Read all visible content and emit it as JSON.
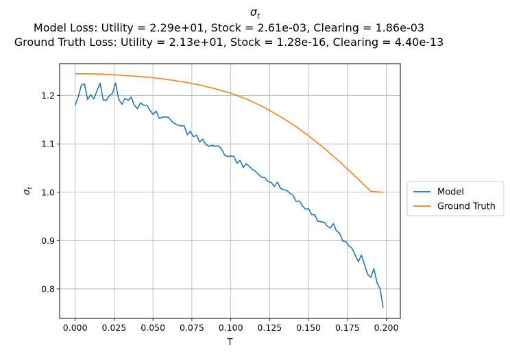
{
  "chart_data": {
    "type": "line",
    "title": "σt",
    "title_lines": [
      "Model Loss: Utility = 2.29e+01, Stock = 2.61e-03, Clearing = 1.86e-03",
      "Ground Truth Loss: Utility = 2.13e+01, Stock = 1.28e-16, Clearing = 4.40e-13"
    ],
    "xlabel": "T",
    "ylabel": "σt",
    "xlim": [
      -0.01,
      0.209
    ],
    "ylim": [
      0.739,
      1.266
    ],
    "xticks": [
      "0.000",
      "0.025",
      "0.050",
      "0.075",
      "0.100",
      "0.125",
      "0.150",
      "0.175",
      "0.200"
    ],
    "yticks": [
      "0.8",
      "0.9",
      "1.0",
      "1.1",
      "1.2"
    ],
    "grid": true,
    "legend_position": "center-right outside",
    "series": [
      {
        "name": "Model",
        "color": "#1f77b4",
        "x": [
          0.0,
          0.002,
          0.004,
          0.006,
          0.008,
          0.01,
          0.012,
          0.014,
          0.016,
          0.018,
          0.02,
          0.022,
          0.024,
          0.026,
          0.028,
          0.03,
          0.032,
          0.034,
          0.036,
          0.038,
          0.04,
          0.042,
          0.044,
          0.046,
          0.048,
          0.05,
          0.052,
          0.054,
          0.056,
          0.058,
          0.06,
          0.062,
          0.064,
          0.066,
          0.068,
          0.07,
          0.072,
          0.074,
          0.076,
          0.078,
          0.08,
          0.082,
          0.084,
          0.086,
          0.088,
          0.09,
          0.092,
          0.094,
          0.096,
          0.098,
          0.1,
          0.102,
          0.104,
          0.106,
          0.108,
          0.11,
          0.112,
          0.114,
          0.116,
          0.118,
          0.12,
          0.122,
          0.124,
          0.126,
          0.128,
          0.13,
          0.132,
          0.134,
          0.136,
          0.138,
          0.14,
          0.142,
          0.144,
          0.146,
          0.148,
          0.15,
          0.152,
          0.154,
          0.156,
          0.158,
          0.16,
          0.162,
          0.164,
          0.166,
          0.168,
          0.17,
          0.172,
          0.174,
          0.176,
          0.178,
          0.18,
          0.182,
          0.184,
          0.186,
          0.188,
          0.19,
          0.192,
          0.194,
          0.196,
          0.198
        ],
        "y": [
          1.18,
          1.198,
          1.222,
          1.224,
          1.192,
          1.202,
          1.193,
          1.21,
          1.226,
          1.191,
          1.19,
          1.2,
          1.205,
          1.226,
          1.192,
          1.182,
          1.194,
          1.19,
          1.197,
          1.18,
          1.173,
          1.185,
          1.18,
          1.18,
          1.17,
          1.161,
          1.168,
          1.153,
          1.155,
          1.156,
          1.155,
          1.147,
          1.142,
          1.139,
          1.137,
          1.138,
          1.119,
          1.126,
          1.115,
          1.118,
          1.104,
          1.11,
          1.099,
          1.095,
          1.097,
          1.095,
          1.096,
          1.09,
          1.077,
          1.074,
          1.075,
          1.074,
          1.06,
          1.066,
          1.051,
          1.059,
          1.053,
          1.047,
          1.043,
          1.036,
          1.031,
          1.03,
          1.022,
          1.02,
          1.012,
          1.021,
          1.008,
          1.005,
          1.004,
          0.998,
          0.994,
          0.981,
          0.982,
          0.972,
          0.965,
          0.966,
          0.954,
          0.953,
          0.94,
          0.939,
          0.938,
          0.93,
          0.926,
          0.935,
          0.92,
          0.915,
          0.899,
          0.898,
          0.889,
          0.884,
          0.87,
          0.856,
          0.87,
          0.85,
          0.83,
          0.824,
          0.842,
          0.813,
          0.8,
          0.761
        ]
      },
      {
        "name": "Ground Truth",
        "color": "#ff7f0e",
        "x": [
          0.0,
          0.01,
          0.02,
          0.03,
          0.04,
          0.05,
          0.06,
          0.07,
          0.08,
          0.09,
          0.1,
          0.11,
          0.12,
          0.13,
          0.14,
          0.15,
          0.16,
          0.17,
          0.18,
          0.19,
          0.198
        ],
        "y": [
          1.245,
          1.245,
          1.244,
          1.242,
          1.24,
          1.237,
          1.233,
          1.228,
          1.222,
          1.214,
          1.205,
          1.193,
          1.178,
          1.16,
          1.14,
          1.117,
          1.091,
          1.063,
          1.033,
          1.002,
          1.0
        ]
      }
    ]
  }
}
